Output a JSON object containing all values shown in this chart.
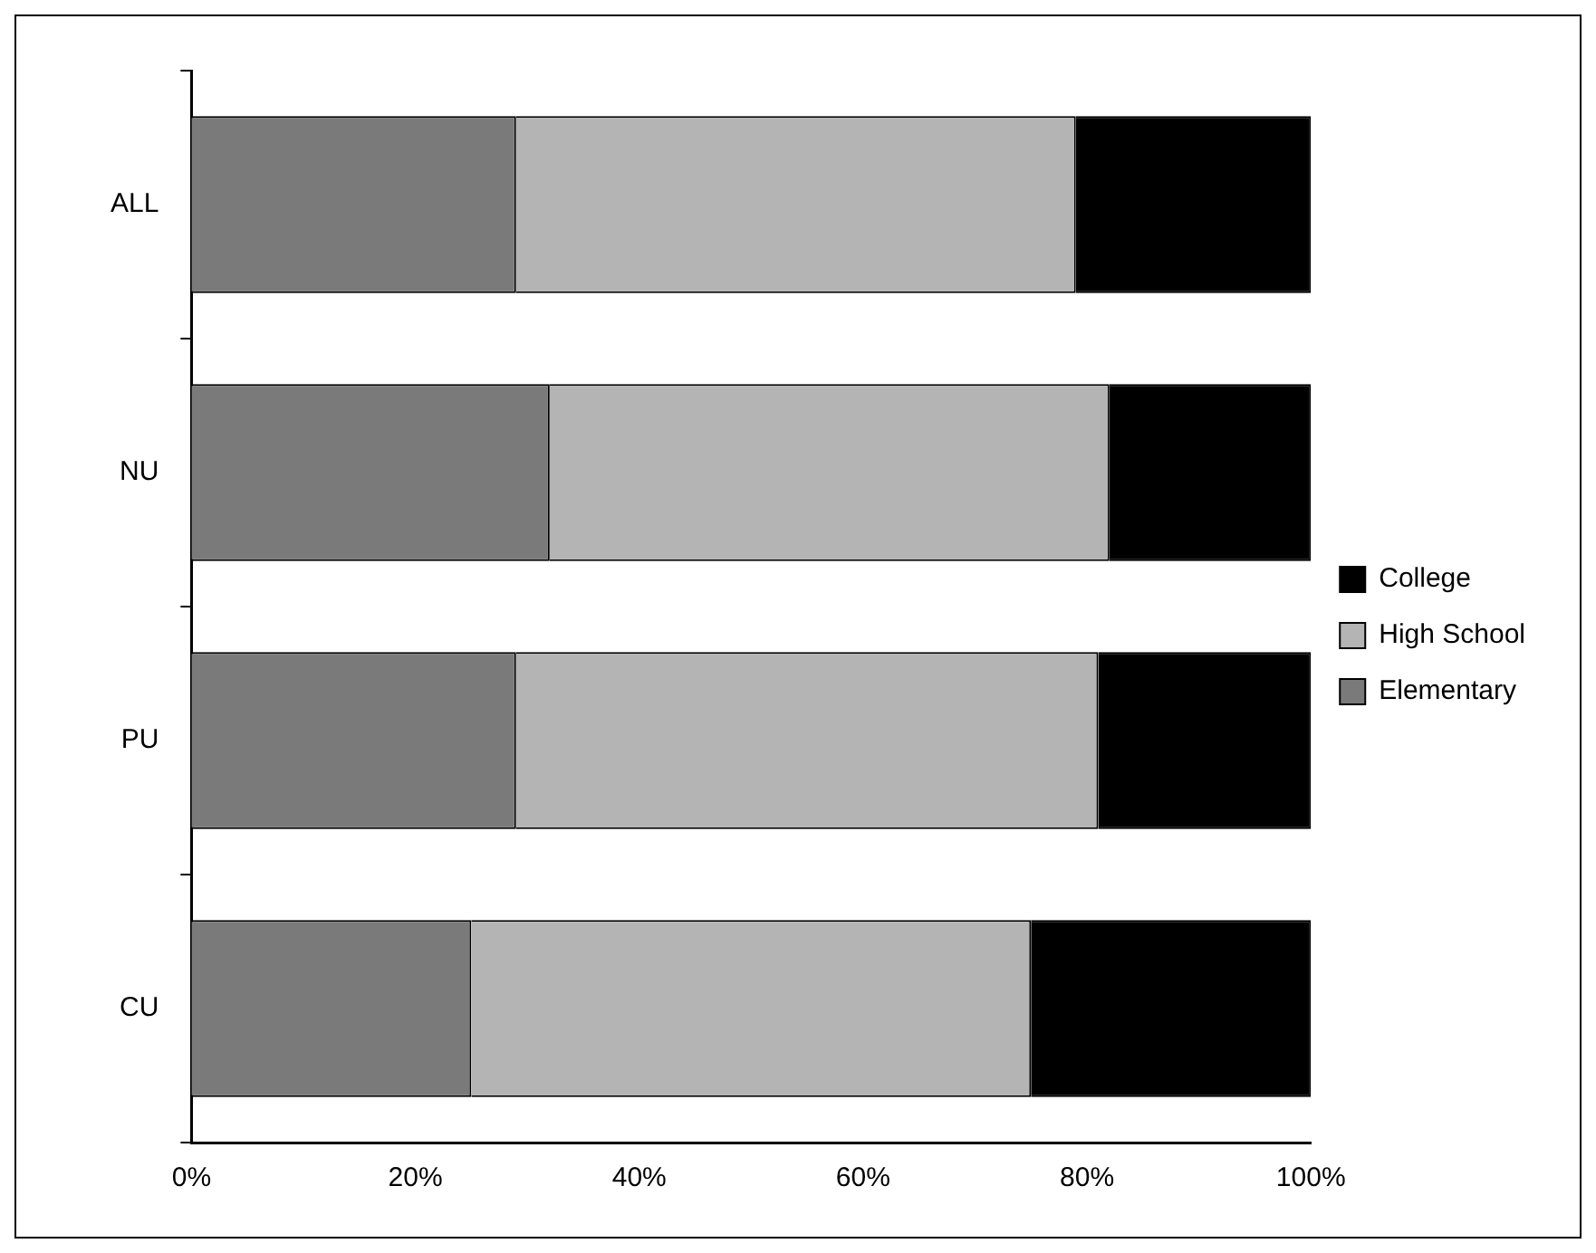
{
  "chart_data": {
    "type": "bar",
    "orientation": "horizontal",
    "stacked": true,
    "categories": [
      "ALL",
      "NU",
      "PU",
      "CU"
    ],
    "series": [
      {
        "name": "Elementary",
        "color": "#7a7a7a",
        "values": [
          29,
          32,
          29,
          25
        ]
      },
      {
        "name": "High School",
        "color": "#b4b4b4",
        "values": [
          50,
          50,
          52,
          50
        ]
      },
      {
        "name": "College",
        "color": "#000000",
        "values": [
          21,
          18,
          19,
          25
        ]
      }
    ],
    "xlim": [
      0,
      100
    ],
    "xticks": [
      {
        "value": 0,
        "label": "0%"
      },
      {
        "value": 20,
        "label": "20%"
      },
      {
        "value": 40,
        "label": "40%"
      },
      {
        "value": 60,
        "label": "60%"
      },
      {
        "value": 80,
        "label": "80%"
      },
      {
        "value": 100,
        "label": "100%"
      }
    ],
    "grid": false,
    "legend": "right"
  }
}
